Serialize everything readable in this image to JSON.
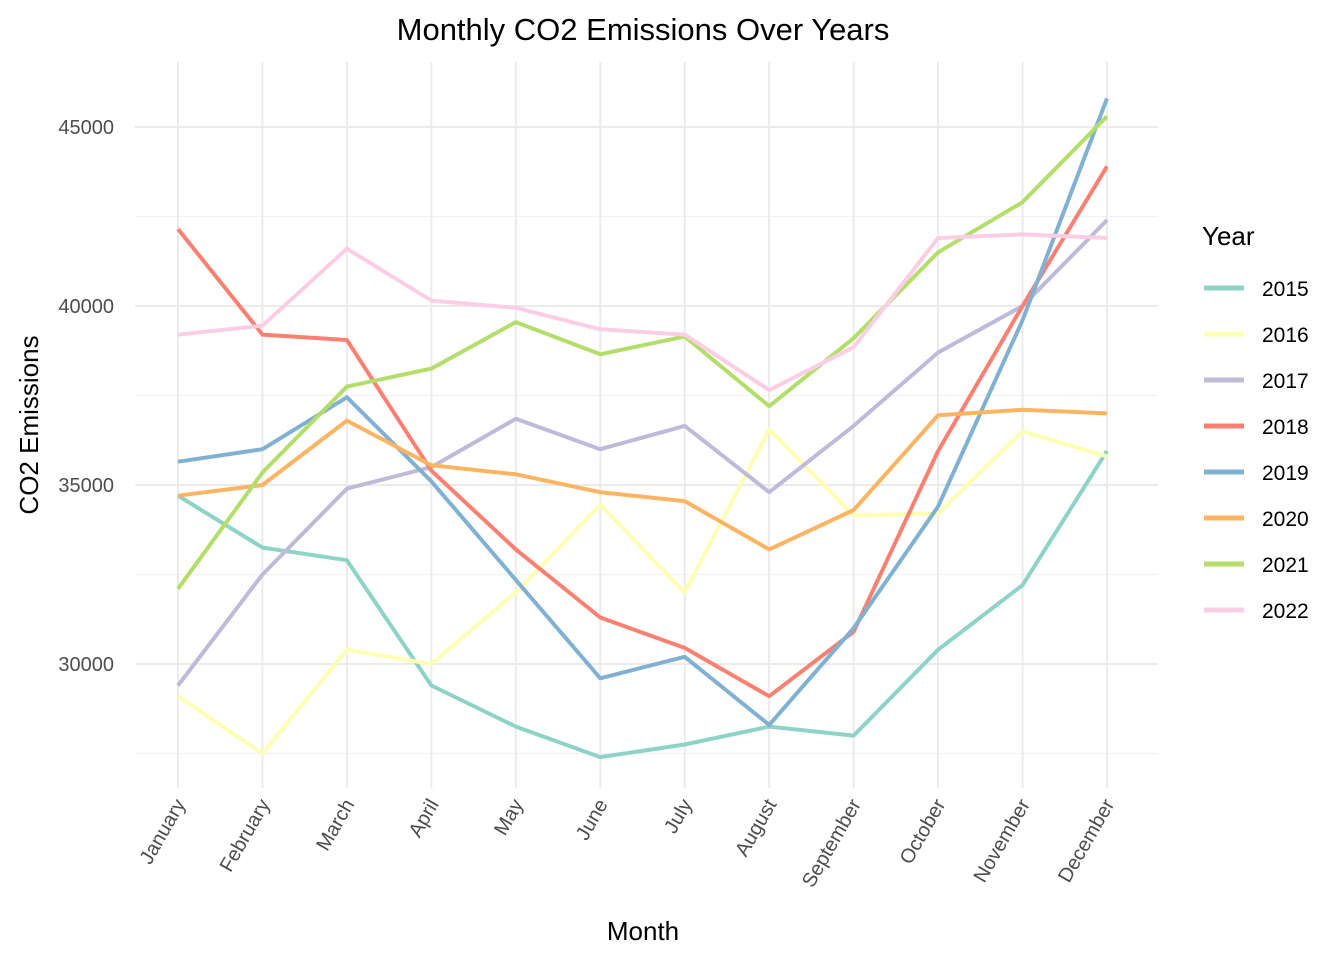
{
  "chart_data": {
    "type": "line",
    "title": "Monthly CO2 Emissions Over Years",
    "xlabel": "Month",
    "ylabel": "CO2 Emissions",
    "categories": [
      "January",
      "February",
      "March",
      "April",
      "May",
      "June",
      "July",
      "August",
      "September",
      "October",
      "November",
      "December"
    ],
    "ylim": [
      26500,
      46800
    ],
    "yticks": [
      30000,
      35000,
      40000,
      45000
    ],
    "grid": true,
    "legend": {
      "title": "Year",
      "position": "right"
    },
    "series": [
      {
        "name": "2015",
        "color": "#8DD3C7",
        "values": [
          34700,
          33250,
          32900,
          29400,
          28250,
          27400,
          27750,
          28250,
          28000,
          30400,
          32200,
          35950
        ]
      },
      {
        "name": "2016",
        "color": "#FFFFB3",
        "values": [
          29100,
          27500,
          30400,
          30000,
          32000,
          34450,
          32000,
          36550,
          34150,
          34200,
          36500,
          35800
        ]
      },
      {
        "name": "2017",
        "color": "#BEBADA",
        "values": [
          29400,
          32500,
          34900,
          35500,
          36850,
          36000,
          36650,
          34800,
          36650,
          38700,
          40000,
          42400
        ]
      },
      {
        "name": "2018",
        "color": "#FB8072",
        "values": [
          42150,
          39200,
          39050,
          35400,
          33200,
          31300,
          30450,
          29100,
          30900,
          35950,
          40000,
          43900
        ]
      },
      {
        "name": "2019",
        "color": "#80B1D3",
        "values": [
          35650,
          36000,
          37450,
          35100,
          32350,
          29600,
          30200,
          28300,
          31000,
          34400,
          39600,
          45800
        ]
      },
      {
        "name": "2020",
        "color": "#FDB462",
        "values": [
          34700,
          35000,
          36800,
          35550,
          35300,
          34800,
          34550,
          33200,
          34300,
          36950,
          37100,
          37000
        ]
      },
      {
        "name": "2021",
        "color": "#B3DE69",
        "values": [
          32100,
          35350,
          37750,
          38250,
          39550,
          38650,
          39150,
          37200,
          39100,
          41500,
          42900,
          45300
        ]
      },
      {
        "name": "2022",
        "color": "#FCCDE5",
        "values": [
          39200,
          39450,
          41600,
          40150,
          39950,
          39350,
          39200,
          37650,
          38850,
          41900,
          42000,
          41900
        ]
      }
    ]
  }
}
